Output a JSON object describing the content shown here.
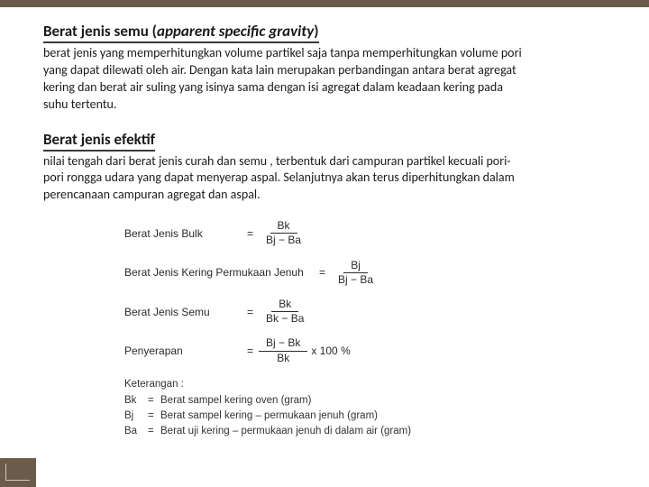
{
  "section1": {
    "title_plain": "Berat jenis semu (",
    "title_italic": "apparent specific gravity",
    "title_close": ")",
    "body": "berat jenis yang memperhitungkan volume partikel saja tanpa memperhitungkan volume pori yang dapat dilewati oleh air. Dengan kata lain merupakan perbandingan antara berat agregat kering dan berat air suling yang isinya sama dengan isi agregat dalam keadaan kering pada suhu tertentu."
  },
  "section2": {
    "title": "Berat jenis efektif",
    "body": "nilai tengah dari berat jenis curah dan semu , terbentuk dari campuran partikel kecuali pori-pori rongga udara yang dapat menyerap aspal. Selanjutnya akan terus diperhitungkan dalam perencanaan campuran agregat dan aspal."
  },
  "formulas": {
    "f1": {
      "label": "Berat Jenis Bulk",
      "num": "Bk",
      "den": "Bj − Ba"
    },
    "f2": {
      "label": "Berat Jenis Kering Permukaan Jenuh",
      "num": "Bj",
      "den": "Bj − Ba"
    },
    "f3": {
      "label": "Berat Jenis Semu",
      "num": "Bk",
      "den": "Bk − Ba"
    },
    "f4": {
      "label": "Penyerapan",
      "num": "Bj − Bk",
      "den": "Bk",
      "suffix": "x 100 %"
    }
  },
  "keterangan": {
    "head": "Keterangan :",
    "rows": [
      {
        "sym": "Bk",
        "desc": "Berat sampel kering oven (gram)"
      },
      {
        "sym": "Bj",
        "desc": "Berat sampel kering – permukaan jenuh (gram)"
      },
      {
        "sym": "Ba",
        "desc": "Berat uji kering – permukaan jenuh di dalam air (gram)"
      }
    ]
  },
  "equals": "="
}
